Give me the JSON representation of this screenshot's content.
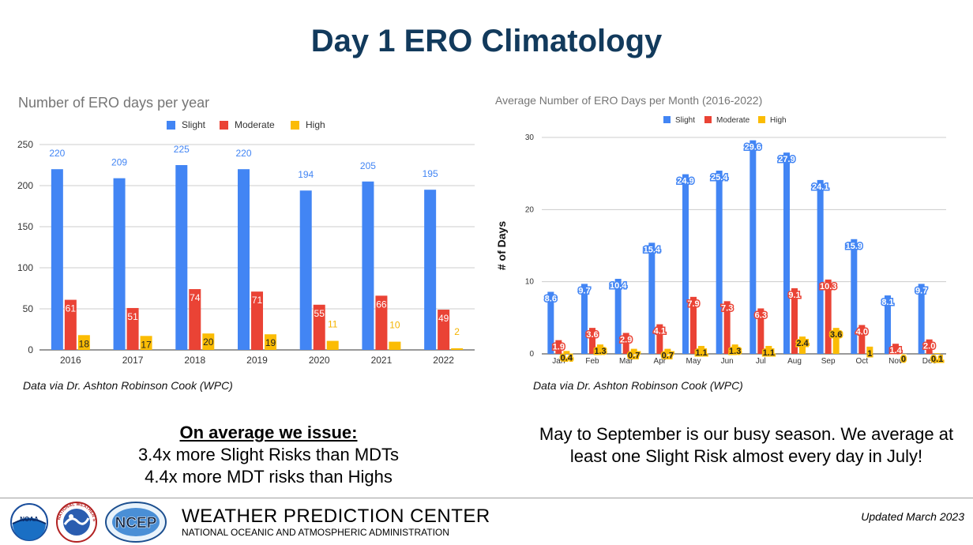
{
  "title": "Day 1 ERO Climatology",
  "chart_data": [
    {
      "type": "bar",
      "title": "Number of ERO days per year",
      "xlabel": "",
      "ylabel": "",
      "categories": [
        "2016",
        "2017",
        "2018",
        "2019",
        "2020",
        "2021",
        "2022"
      ],
      "series": [
        {
          "name": "Slight",
          "color": "#4285f4",
          "values": [
            220,
            209,
            225,
            220,
            194,
            205,
            195
          ]
        },
        {
          "name": "Moderate",
          "color": "#ea4335",
          "values": [
            61,
            51,
            74,
            71,
            55,
            66,
            49
          ]
        },
        {
          "name": "High",
          "color": "#fbbc04",
          "values": [
            18,
            17,
            20,
            19,
            11,
            10,
            2
          ]
        }
      ],
      "ylim": [
        0,
        250
      ],
      "yticks": [
        0,
        50,
        100,
        150,
        200,
        250
      ],
      "grid": true,
      "legend": "top"
    },
    {
      "type": "bar",
      "title": "Average Number of ERO Days per Month (2016-2022)",
      "xlabel": "",
      "ylabel": "# of Days",
      "categories": [
        "Jan",
        "Feb",
        "Mar",
        "Apr",
        "May",
        "Jun",
        "Jul",
        "Aug",
        "Sep",
        "Oct",
        "Nov",
        "Dec"
      ],
      "series": [
        {
          "name": "Slight",
          "color": "#4285f4",
          "values": [
            8.6,
            9.7,
            10.4,
            15.4,
            24.9,
            25.4,
            29.6,
            27.9,
            24.1,
            15.9,
            8.1,
            9.7
          ]
        },
        {
          "name": "Moderate",
          "color": "#ea4335",
          "values": [
            1.9,
            3.6,
            2.9,
            4.1,
            7.9,
            7.3,
            6.3,
            9.1,
            10.3,
            4.0,
            1.4,
            2.0
          ]
        },
        {
          "name": "High",
          "color": "#fbbc04",
          "values": [
            0.4,
            1.3,
            0.7,
            0.7,
            1.1,
            1.3,
            1.1,
            2.4,
            3.6,
            1,
            0,
            0.1
          ]
        }
      ],
      "labels": [
        [
          "8.6",
          "9.7",
          "10.4",
          "15.4",
          "24.9",
          "25.4",
          "29.6",
          "27.9",
          "24.1",
          "15.9",
          "8.1",
          "9.7"
        ],
        [
          "1.9",
          "3.6",
          "2.9",
          "4.1",
          "7.9",
          "7.3",
          "6.3",
          "9.1",
          "10.3",
          "4.0",
          "1.4",
          "2.0"
        ],
        [
          "0.4",
          "1.3",
          "0.7",
          "0.7",
          "1.1",
          "1.3",
          "1.1",
          "2.4",
          "3.6",
          "1",
          "0",
          "0.1"
        ]
      ],
      "ylim": [
        0,
        30
      ],
      "yticks": [
        0,
        10,
        20,
        30
      ],
      "grid": true,
      "legend": "top"
    }
  ],
  "credit_left": "Data via Dr. Ashton Robinson Cook (WPC)",
  "credit_right": "Data via Dr. Ashton Robinson Cook (WPC)",
  "note_left": {
    "heading": "On average we issue:",
    "line1": "3.4x more Slight Risks than MDTs",
    "line2": "4.4x more MDT risks than Highs"
  },
  "note_right": "May to September is our busy season. We average at least one Slight Risk almost every day in July!",
  "footer": {
    "org_name": "WEATHER PREDICTION CENTER",
    "org_sub": "NATIONAL OCEANIC AND ATMOSPHERIC ADMINISTRATION",
    "updated": "Updated March 2023",
    "logos": [
      {
        "name": "noaa-logo",
        "text": "NOAA"
      },
      {
        "name": "nws-logo",
        "text": "NATIONAL WEATHER SERVICE"
      },
      {
        "name": "ncep-logo",
        "text": "NCEP"
      }
    ]
  }
}
